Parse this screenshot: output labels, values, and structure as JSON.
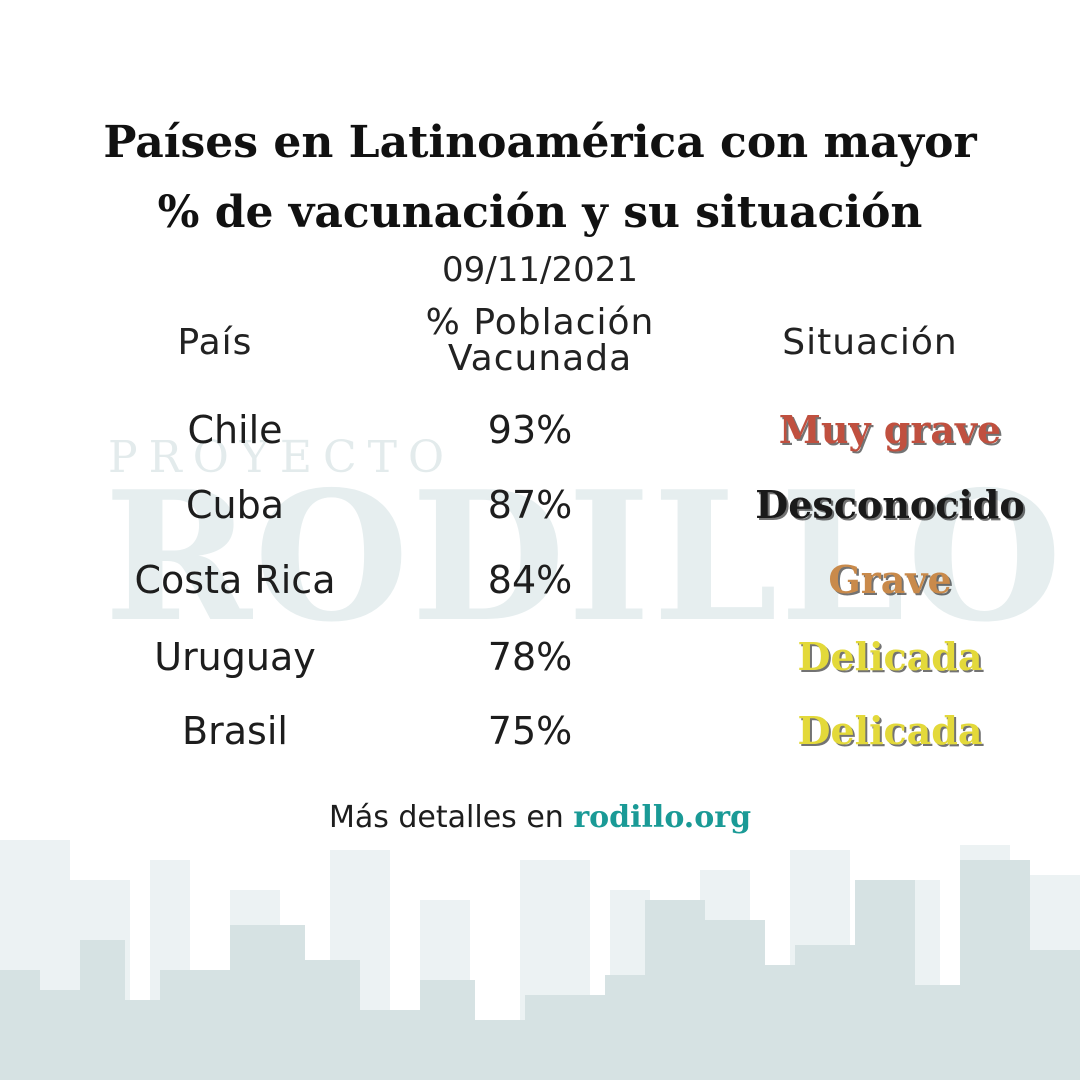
{
  "title": {
    "line1": "Países en Latinoamérica con mayor",
    "line2": "% de vacunación y su situación"
  },
  "date": "09/11/2021",
  "headers": {
    "country": "País",
    "population_line1": "% Población",
    "population_line2": "Vacunada",
    "situation": "Situación"
  },
  "rows": [
    {
      "country": "Chile",
      "percent": "93%",
      "situation": "Muy grave",
      "color": "#c0503f"
    },
    {
      "country": "Cuba",
      "percent": "87%",
      "situation": "Desconocido",
      "color": "#1a1a1a"
    },
    {
      "country": "Costa Rica",
      "percent": "84%",
      "situation": "Grave",
      "color": "#c98a4b"
    },
    {
      "country": "Uruguay",
      "percent": "78%",
      "situation": "Delicada",
      "color": "#e3d93a"
    },
    {
      "country": "Brasil",
      "percent": "75%",
      "situation": "Delicada",
      "color": "#e3d93a"
    }
  ],
  "watermark": {
    "top": "PROYECTO",
    "main": "RODILLO"
  },
  "footer": {
    "text": "Más detalles en ",
    "link": "rodillo.org",
    "link_color": "#1a9a96"
  },
  "colors": {
    "skyline": "#d6e2e3"
  }
}
